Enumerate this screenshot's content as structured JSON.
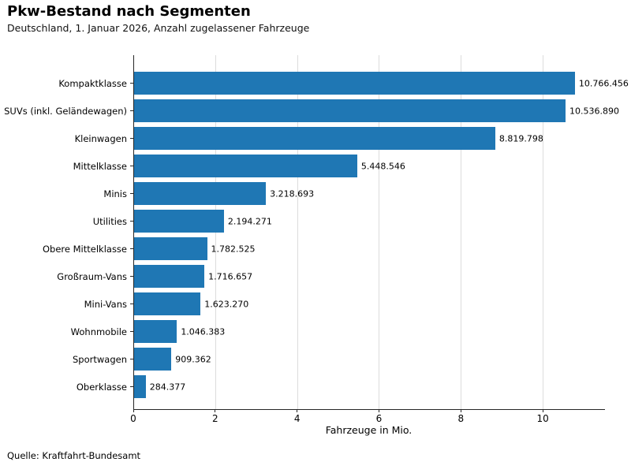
{
  "chart_data": {
    "type": "bar",
    "orientation": "horizontal",
    "title": "Pkw-Bestand nach Segmenten",
    "subtitle": "Deutschland, 1. Januar 2026, Anzahl zugelassener Fahrzeuge",
    "xlabel": "Fahrzeuge in Mio.",
    "ylabel": "",
    "source_note": "Quelle: Kraftfahrt-Bundesamt",
    "categories": [
      "Kompaktklasse",
      "SUVs (inkl. Geländewagen)",
      "Kleinwagen",
      "Mittelklasse",
      "Minis",
      "Utilities",
      "Obere Mittelklasse",
      "Großraum-Vans",
      "Mini-Vans",
      "Wohnmobile",
      "Sportwagen",
      "Oberklasse"
    ],
    "values": [
      10766456,
      10536890,
      8819798,
      5448546,
      3218693,
      2194271,
      1782525,
      1716657,
      1623270,
      1046383,
      909362,
      284377
    ],
    "value_labels": [
      "10.766.456",
      "10.536.890",
      "8.819.798",
      "5.448.546",
      "3.218.693",
      "2.194.271",
      "1.782.525",
      "1.716.657",
      "1.623.270",
      "1.046.383",
      "909.362",
      "284.377"
    ],
    "unit": "Mio.",
    "xlim": [
      0,
      11.5
    ],
    "xticks": [
      0,
      2,
      4,
      6,
      8,
      10
    ],
    "xtick_labels": [
      "0",
      "2",
      "4",
      "6",
      "8",
      "10"
    ],
    "grid": "vertical",
    "legend": "none",
    "colors": {
      "bar": "#1f77b4",
      "grid": "#dcdcdc",
      "axis": "#262626",
      "text": "#000000"
    }
  }
}
